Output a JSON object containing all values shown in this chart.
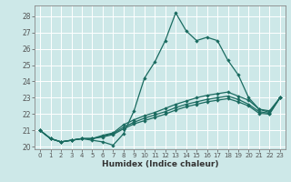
{
  "title": "",
  "xlabel": "Humidex (Indice chaleur)",
  "background_color": "#cde8e8",
  "grid_color": "#ffffff",
  "line_color": "#1a6b60",
  "xlim": [
    -0.5,
    23.5
  ],
  "ylim": [
    19.85,
    28.65
  ],
  "yticks": [
    20,
    21,
    22,
    23,
    24,
    25,
    26,
    27,
    28
  ],
  "xticks": [
    0,
    1,
    2,
    3,
    4,
    5,
    6,
    7,
    8,
    9,
    10,
    11,
    12,
    13,
    14,
    15,
    16,
    17,
    18,
    19,
    20,
    21,
    22,
    23
  ],
  "series": [
    [
      21.0,
      20.5,
      20.3,
      20.4,
      20.5,
      20.4,
      20.3,
      20.1,
      20.8,
      22.2,
      24.2,
      25.2,
      26.5,
      28.2,
      27.1,
      26.5,
      26.7,
      26.5,
      25.3,
      24.4,
      23.0,
      22.3,
      22.1,
      23.0
    ],
    [
      21.0,
      20.5,
      20.3,
      20.4,
      20.5,
      20.5,
      20.7,
      20.85,
      21.35,
      21.65,
      21.9,
      22.1,
      22.35,
      22.6,
      22.8,
      23.0,
      23.15,
      23.25,
      23.35,
      23.1,
      22.85,
      22.3,
      22.2,
      23.0
    ],
    [
      21.0,
      20.5,
      20.3,
      20.4,
      20.5,
      20.5,
      20.65,
      20.8,
      21.2,
      21.5,
      21.75,
      21.95,
      22.15,
      22.4,
      22.6,
      22.75,
      22.9,
      23.0,
      23.1,
      22.9,
      22.6,
      22.15,
      22.05,
      23.0
    ],
    [
      21.0,
      20.5,
      20.3,
      20.4,
      20.5,
      20.5,
      20.6,
      20.75,
      21.1,
      21.4,
      21.6,
      21.8,
      22.0,
      22.25,
      22.45,
      22.6,
      22.75,
      22.85,
      22.95,
      22.75,
      22.5,
      22.05,
      22.0,
      23.0
    ]
  ]
}
